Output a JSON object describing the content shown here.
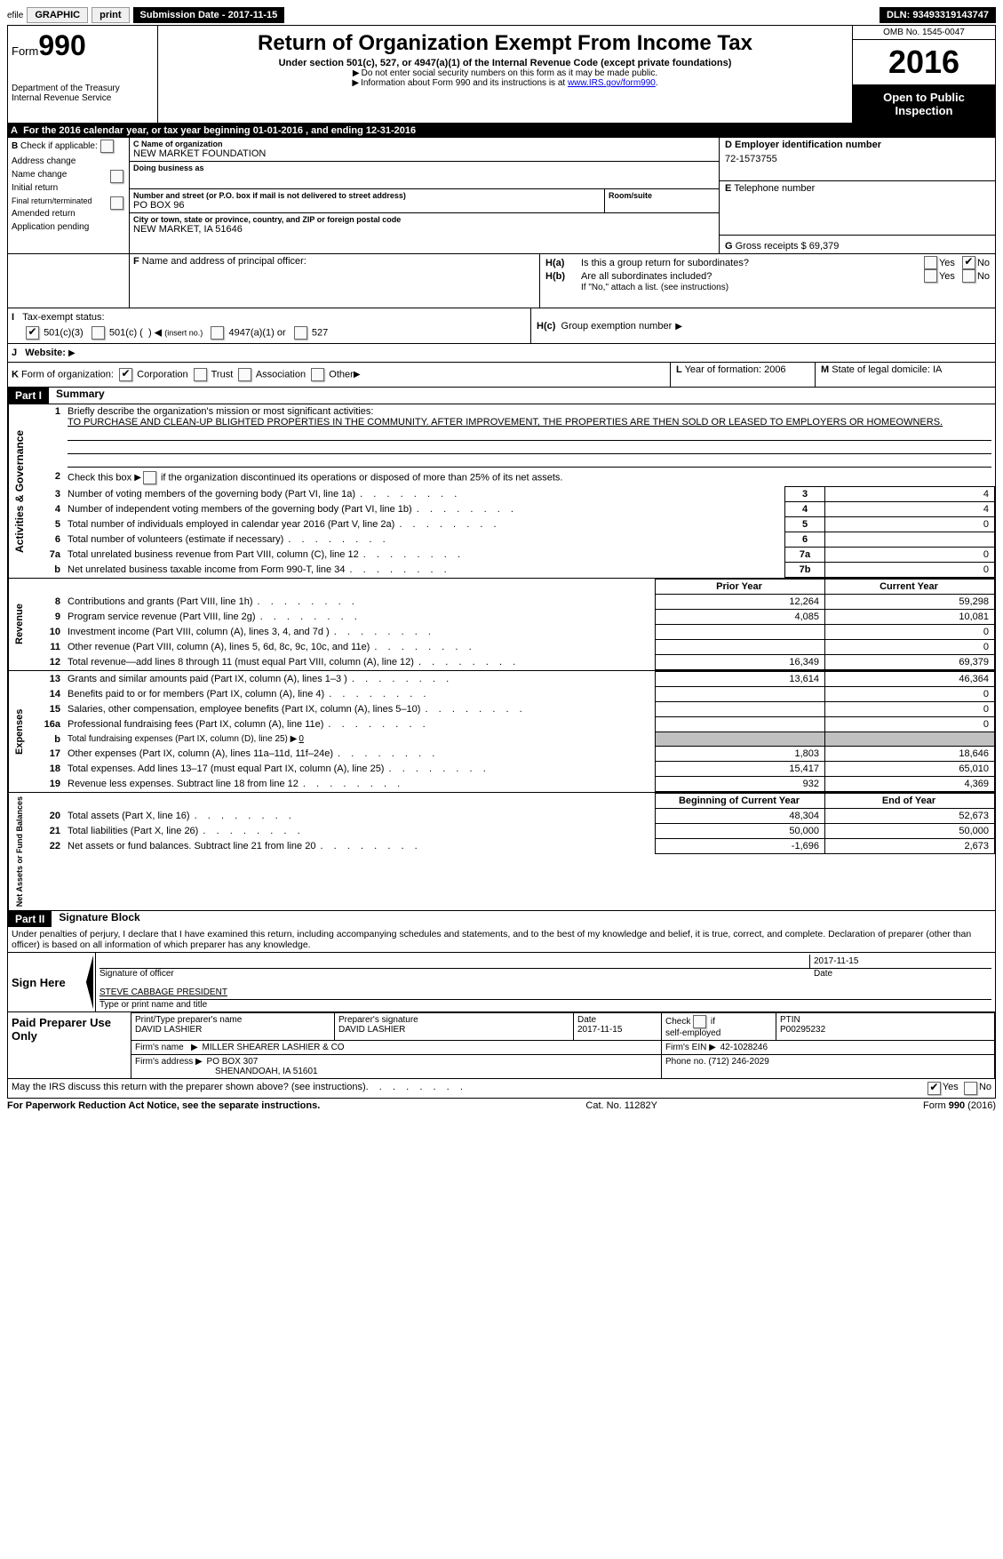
{
  "toolbar": {
    "efile_prefix": "efile",
    "efile_label": "GRAPHIC",
    "print": "print",
    "submission_label": "Submission Date - ",
    "submission_date": "2017-11-15",
    "dln_label": "DLN: ",
    "dln": "93493319143747"
  },
  "header": {
    "form_prefix": "Form",
    "form_num": "990",
    "dept1": "Department of the Treasury",
    "dept2": "Internal Revenue Service",
    "title": "Return of Organization Exempt From Income Tax",
    "subtitle": "Under section 501(c), 527, or 4947(a)(1) of the Internal Revenue Code (except private foundations)",
    "note1": "Do not enter social security numbers on this form as it may be made public.",
    "note2_pre": "Information about Form 990 and its instructions is at ",
    "note2_link": "www.IRS.gov/form990",
    "omb": "OMB No. 1545-0047",
    "year": "2016",
    "open_public": "Open to Public Inspection"
  },
  "boxA": {
    "text_pre": "For the 2016 calendar year, or tax year beginning ",
    "begin": "01-01-2016",
    "mid": " , and ending ",
    "end": "12-31-2016"
  },
  "boxB": {
    "label": "Check if applicable:",
    "addr": "Address change",
    "name": "Name change",
    "initial": "Initial return",
    "final": "Final return/terminated",
    "amended": "Amended return",
    "app": "Application pending"
  },
  "boxC": {
    "label": "Name of organization",
    "value": "NEW MARKET FOUNDATION",
    "dba": "Doing business as",
    "street_label": "Number and street (or P.O. box if mail is not delivered to street address)",
    "street": "PO BOX 96",
    "room_label": "Room/suite",
    "city_label": "City or town, state or province, country, and ZIP or foreign postal code",
    "city": "NEW MARKET, IA  51646"
  },
  "boxD": {
    "label": "Employer identification number",
    "value": "72-1573755"
  },
  "boxE": {
    "label": "Telephone number"
  },
  "boxF": {
    "label": "Name and address of principal officer:"
  },
  "boxG": {
    "label": "Gross receipts $ ",
    "value": "69,379"
  },
  "boxH": {
    "a": "Is this a group return for subordinates?",
    "b": "Are all subordinates included?",
    "b_note": "If \"No,\" attach a list. (see instructions)",
    "c": "Group exemption number",
    "yes": "Yes",
    "no": "No"
  },
  "boxI": {
    "label": "Tax-exempt status:",
    "opt1": "501(c)(3)",
    "opt2_pre": "501(c) (",
    "opt2_post": ")",
    "opt2_note": "(insert no.)",
    "opt3": "4947(a)(1) or",
    "opt4": "527"
  },
  "boxJ": {
    "label": "Website:"
  },
  "boxK": {
    "label": "Form of organization:",
    "corp": "Corporation",
    "trust": "Trust",
    "assoc": "Association",
    "other": "Other"
  },
  "boxL": {
    "label": "Year of formation: ",
    "value": "2006"
  },
  "boxM": {
    "label": "State of legal domicile: ",
    "value": "IA"
  },
  "part1": {
    "header": "Part I",
    "title": "Summary",
    "l1_label": "Briefly describe the organization's mission or most significant activities:",
    "l1_value": "TO PURCHASE AND CLEAN-UP BLIGHTED PROPERTIES IN THE COMMUNITY. AFTER IMPROVEMENT, THE PROPERTIES ARE THEN SOLD OR LEASED TO EMPLOYERS OR HOMEOWNERS.",
    "l2": "Check this box",
    "l2_post": "if the organization discontinued its operations or disposed of more than 25% of its net assets.",
    "vlab_ag": "Activities & Governance",
    "vlab_rev": "Revenue",
    "vlab_exp": "Expenses",
    "vlab_net": "Net Assets or Fund Balances",
    "rows_gov": [
      {
        "n": "3",
        "t": "Number of voting members of the governing body (Part VI, line 1a)",
        "box": "3",
        "v": "4"
      },
      {
        "n": "4",
        "t": "Number of independent voting members of the governing body (Part VI, line 1b)",
        "box": "4",
        "v": "4"
      },
      {
        "n": "5",
        "t": "Total number of individuals employed in calendar year 2016 (Part V, line 2a)",
        "box": "5",
        "v": "0"
      },
      {
        "n": "6",
        "t": "Total number of volunteers (estimate if necessary)",
        "box": "6",
        "v": ""
      },
      {
        "n": "7a",
        "t": "Total unrelated business revenue from Part VIII, column (C), line 12",
        "box": "7a",
        "v": "0"
      },
      {
        "n": "b",
        "t": "Net unrelated business taxable income from Form 990-T, line 34",
        "box": "7b",
        "v": "0"
      }
    ],
    "col_prior": "Prior Year",
    "col_current": "Current Year",
    "rows_rev": [
      {
        "n": "8",
        "t": "Contributions and grants (Part VIII, line 1h)",
        "p": "12,264",
        "c": "59,298"
      },
      {
        "n": "9",
        "t": "Program service revenue (Part VIII, line 2g)",
        "p": "4,085",
        "c": "10,081"
      },
      {
        "n": "10",
        "t": "Investment income (Part VIII, column (A), lines 3, 4, and 7d )",
        "p": "",
        "c": "0"
      },
      {
        "n": "11",
        "t": "Other revenue (Part VIII, column (A), lines 5, 6d, 8c, 9c, 10c, and 11e)",
        "p": "",
        "c": "0"
      },
      {
        "n": "12",
        "t": "Total revenue—add lines 8 through 11 (must equal Part VIII, column (A), line 12)",
        "p": "16,349",
        "c": "69,379"
      }
    ],
    "rows_exp": [
      {
        "n": "13",
        "t": "Grants and similar amounts paid (Part IX, column (A), lines 1–3 )",
        "p": "13,614",
        "c": "46,364"
      },
      {
        "n": "14",
        "t": "Benefits paid to or for members (Part IX, column (A), line 4)",
        "p": "",
        "c": "0"
      },
      {
        "n": "15",
        "t": "Salaries, other compensation, employee benefits (Part IX, column (A), lines 5–10)",
        "p": "",
        "c": "0"
      },
      {
        "n": "16a",
        "t": "Professional fundraising fees (Part IX, column (A), line 11e)",
        "p": "",
        "c": "0"
      }
    ],
    "l16b": "Total fundraising expenses (Part IX, column (D), line 25)",
    "l16b_val": "0",
    "rows_exp2": [
      {
        "n": "17",
        "t": "Other expenses (Part IX, column (A), lines 11a–11d, 11f–24e)",
        "p": "1,803",
        "c": "18,646"
      },
      {
        "n": "18",
        "t": "Total expenses. Add lines 13–17 (must equal Part IX, column (A), line 25)",
        "p": "15,417",
        "c": "65,010"
      },
      {
        "n": "19",
        "t": "Revenue less expenses. Subtract line 18 from line 12",
        "p": "932",
        "c": "4,369"
      }
    ],
    "col_begin": "Beginning of Current Year",
    "col_end": "End of Year",
    "rows_net": [
      {
        "n": "20",
        "t": "Total assets (Part X, line 16)",
        "p": "48,304",
        "c": "52,673"
      },
      {
        "n": "21",
        "t": "Total liabilities (Part X, line 26)",
        "p": "50,000",
        "c": "50,000"
      },
      {
        "n": "22",
        "t": "Net assets or fund balances. Subtract line 21 from line 20",
        "p": "-1,696",
        "c": "2,673"
      }
    ]
  },
  "part2": {
    "header": "Part II",
    "title": "Signature Block",
    "perjury": "Under penalties of perjury, I declare that I have examined this return, including accompanying schedules and statements, and to the best of my knowledge and belief, it is true, correct, and complete. Declaration of preparer (other than officer) is based on all information of which preparer has any knowledge.",
    "sign_here": "Sign Here",
    "sig_officer": "Signature of officer",
    "sig_date": "2017-11-15",
    "date_lbl": "Date",
    "officer_name": "STEVE CABBAGE  PRESIDENT",
    "type_name": "Type or print name and title",
    "paid": "Paid Preparer Use Only",
    "prep_name_lbl": "Print/Type preparer's name",
    "prep_name": "DAVID LASHIER",
    "prep_sig_lbl": "Preparer's signature",
    "prep_sig": "DAVID LASHIER",
    "prep_date_lbl": "Date",
    "prep_date": "2017-11-15",
    "self_emp": "self-employed",
    "check_if": "Check",
    "if": "if",
    "ptin_lbl": "PTIN",
    "ptin": "P00295232",
    "firm_name_lbl": "Firm's name",
    "firm_name": "MILLER SHEARER LASHIER & CO",
    "firm_ein_lbl": "Firm's EIN",
    "firm_ein": "42-1028246",
    "firm_addr_lbl": "Firm's address",
    "firm_addr1": "PO BOX 307",
    "firm_addr2": "SHENANDOAH, IA  51601",
    "phone_lbl": "Phone no. ",
    "phone": "(712) 246-2029",
    "discuss": "May the IRS discuss this return with the preparer shown above? (see instructions)",
    "yes": "Yes",
    "no": "No"
  },
  "footer": {
    "left": "For Paperwork Reduction Act Notice, see the separate instructions.",
    "mid": "Cat. No. 11282Y",
    "right": "Form 990 (2016)"
  }
}
